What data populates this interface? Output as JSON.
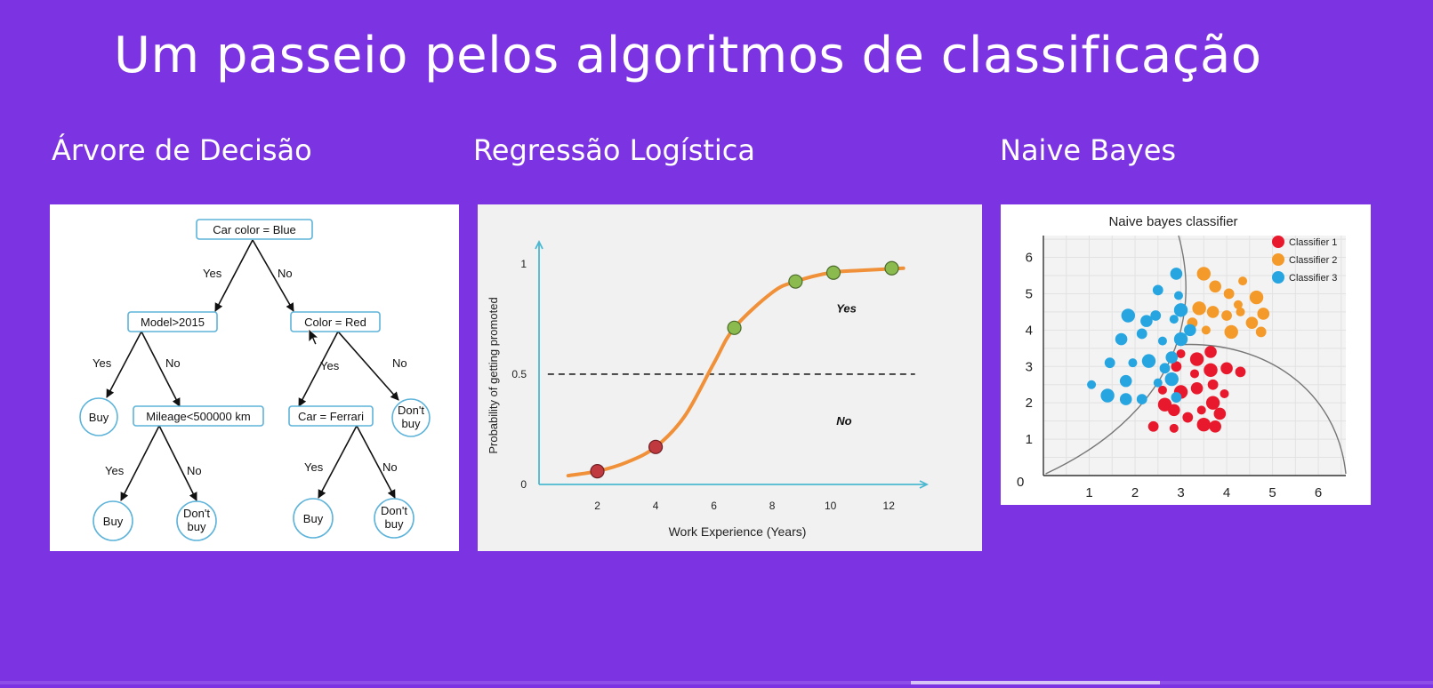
{
  "slide": {
    "title": "Um passeio pelos algoritmos de classificação"
  },
  "sections": {
    "tree": "Árvore de Decisão",
    "logistic": "Regressão Logística",
    "bayes": "Naive Bayes"
  },
  "tree": {
    "root": "Car color = Blue",
    "node_model": "Model>2015",
    "node_color": "Color = Red",
    "node_mileage": "Mileage<500000 km",
    "node_ferrari": "Car = Ferrari",
    "leaf_buy_1": "Buy",
    "leaf_buy_2": "Buy",
    "leaf_dontbuy_1": [
      "Don't",
      "buy"
    ],
    "leaf_buy_3": "Buy",
    "leaf_dontbuy_2": [
      "Don't",
      "buy"
    ],
    "leaf_dontbuy_3": [
      "Don't",
      "buy"
    ],
    "yes": "Yes",
    "no": "No"
  },
  "chart_data": [
    {
      "type": "line",
      "title": "",
      "xlabel": "Work Experience (Years)",
      "ylabel": "Probability of getting promoted",
      "x_ticks": [
        2,
        4,
        6,
        8,
        10,
        12
      ],
      "y_ticks": [
        0,
        0.5,
        1
      ],
      "xlim": [
        0,
        13
      ],
      "ylim": [
        0,
        1.1
      ],
      "threshold": 0.5,
      "annotations": [
        "Yes",
        "No"
      ],
      "curve": [
        {
          "x": 1,
          "y": 0.04
        },
        {
          "x": 2,
          "y": 0.06
        },
        {
          "x": 3,
          "y": 0.1
        },
        {
          "x": 4,
          "y": 0.17
        },
        {
          "x": 5,
          "y": 0.31
        },
        {
          "x": 6,
          "y": 0.55
        },
        {
          "x": 6.7,
          "y": 0.71
        },
        {
          "x": 8,
          "y": 0.87
        },
        {
          "x": 8.8,
          "y": 0.92
        },
        {
          "x": 10,
          "y": 0.96
        },
        {
          "x": 11,
          "y": 0.97
        },
        {
          "x": 12.5,
          "y": 0.98
        }
      ],
      "points_no": [
        {
          "x": 2,
          "y": 0.06
        },
        {
          "x": 4,
          "y": 0.17
        }
      ],
      "points_yes": [
        {
          "x": 6.7,
          "y": 0.71
        },
        {
          "x": 8.8,
          "y": 0.92
        },
        {
          "x": 10.1,
          "y": 0.96
        },
        {
          "x": 12.1,
          "y": 0.98
        }
      ],
      "colors": {
        "curve": "#f0913a",
        "no": "#c0393f",
        "yes": "#8bbb4f",
        "axis": "#4bb8d0",
        "threshold": "#222222"
      }
    },
    {
      "type": "scatter",
      "title": "Naive bayes classifier",
      "x_ticks": [
        1,
        2,
        3,
        4,
        5,
        6
      ],
      "y_ticks": [
        1,
        2,
        3,
        4,
        5,
        6
      ],
      "origin_label": "0",
      "xlim": [
        0,
        6.6
      ],
      "ylim": [
        0,
        6.6
      ],
      "series": [
        {
          "name": "Classifier 1",
          "color": "#e8192c",
          "points": [
            [
              3.0,
              3.35
            ],
            [
              3.35,
              3.2
            ],
            [
              3.65,
              3.4
            ],
            [
              2.9,
              3.0
            ],
            [
              3.3,
              2.8
            ],
            [
              3.65,
              2.9
            ],
            [
              4.0,
              2.95
            ],
            [
              4.3,
              2.85
            ],
            [
              2.6,
              2.35
            ],
            [
              3.0,
              2.3
            ],
            [
              3.35,
              2.4
            ],
            [
              3.7,
              2.5
            ],
            [
              3.95,
              2.25
            ],
            [
              2.65,
              1.95
            ],
            [
              2.85,
              1.8
            ],
            [
              3.15,
              1.6
            ],
            [
              3.45,
              1.8
            ],
            [
              3.7,
              2.0
            ],
            [
              3.85,
              1.7
            ],
            [
              2.4,
              1.35
            ],
            [
              2.85,
              1.3
            ],
            [
              3.5,
              1.4
            ],
            [
              3.75,
              1.35
            ]
          ]
        },
        {
          "name": "Classifier 2",
          "color": "#f39a2a",
          "points": [
            [
              3.5,
              5.55
            ],
            [
              3.75,
              5.2
            ],
            [
              4.05,
              5.0
            ],
            [
              4.35,
              5.35
            ],
            [
              3.4,
              4.6
            ],
            [
              3.7,
              4.5
            ],
            [
              4.0,
              4.4
            ],
            [
              4.3,
              4.5
            ],
            [
              4.65,
              4.9
            ],
            [
              4.8,
              4.45
            ],
            [
              3.25,
              4.2
            ],
            [
              3.55,
              4.0
            ],
            [
              4.1,
              3.95
            ],
            [
              4.55,
              4.2
            ],
            [
              4.75,
              3.95
            ],
            [
              4.25,
              4.7
            ]
          ]
        },
        {
          "name": "Classifier 3",
          "color": "#27a5e0",
          "points": [
            [
              2.9,
              5.55
            ],
            [
              2.5,
              5.1
            ],
            [
              2.95,
              4.95
            ],
            [
              1.85,
              4.4
            ],
            [
              2.25,
              4.25
            ],
            [
              2.45,
              4.4
            ],
            [
              2.85,
              4.3
            ],
            [
              3.0,
              4.55
            ],
            [
              1.7,
              3.75
            ],
            [
              2.15,
              3.9
            ],
            [
              2.6,
              3.7
            ],
            [
              3.0,
              3.75
            ],
            [
              3.2,
              4.0
            ],
            [
              1.45,
              3.1
            ],
            [
              1.95,
              3.1
            ],
            [
              2.3,
              3.15
            ],
            [
              2.8,
              3.25
            ],
            [
              2.65,
              2.95
            ],
            [
              1.05,
              2.5
            ],
            [
              1.4,
              2.2
            ],
            [
              1.8,
              2.6
            ],
            [
              2.15,
              2.1
            ],
            [
              2.5,
              2.55
            ],
            [
              2.8,
              2.65
            ],
            [
              1.8,
              2.1
            ],
            [
              2.9,
              2.15
            ]
          ]
        }
      ]
    }
  ]
}
